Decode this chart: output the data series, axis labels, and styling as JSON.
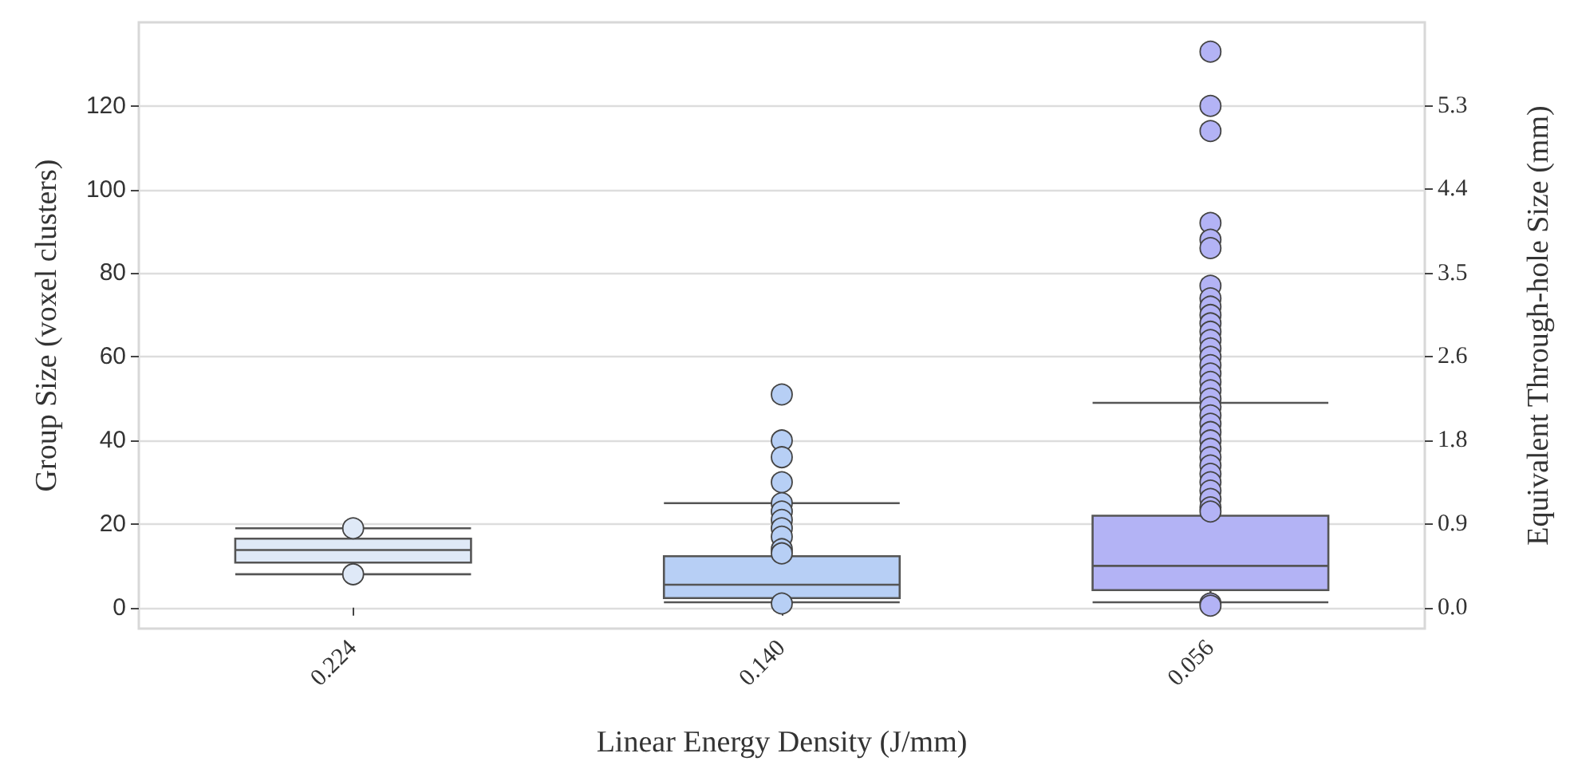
{
  "chart_data": {
    "type": "box",
    "xlabel": "Linear Energy Density (J/mm)",
    "ylabel": "Group Size (voxel clusters)",
    "y2label": "Equivalent Through-hole Size (mm)",
    "categories": [
      "0.224",
      "0.140",
      "0.056"
    ],
    "colors": [
      "#dfe9f7",
      "#b7cff5",
      "#b3b3f5"
    ],
    "boxes": [
      {
        "low": 8,
        "q1": 10.8,
        "median": 13.8,
        "q3": 16.5,
        "high": 19,
        "outliers": [
          19,
          8
        ]
      },
      {
        "low": 1.3,
        "q1": 2.3,
        "median": 5.5,
        "q3": 12.3,
        "high": 25,
        "outliers": [
          51,
          40,
          36,
          30,
          25,
          23,
          21,
          19,
          17,
          14,
          13,
          1
        ]
      },
      {
        "low": 1.3,
        "q1": 4.2,
        "median": 10,
        "q3": 22,
        "high": 49,
        "outliers": [
          133,
          120,
          114,
          92,
          88,
          86,
          77,
          74,
          72,
          70,
          68,
          66,
          64,
          62,
          60,
          58,
          56,
          54,
          52,
          50,
          48,
          46,
          44,
          42,
          40,
          38,
          36,
          34,
          32,
          30,
          28,
          26,
          24,
          23,
          1,
          0.5
        ]
      }
    ],
    "ylim": [
      -5,
      140
    ],
    "yticks": [
      0,
      20,
      40,
      60,
      80,
      100,
      120
    ],
    "y2lim": [
      -0.22,
      6.18
    ],
    "y2ticks": [
      {
        "value": 0,
        "label": "0.0"
      },
      {
        "value": 0.88,
        "label": "0.9"
      },
      {
        "value": 1.77,
        "label": "1.8"
      },
      {
        "value": 2.65,
        "label": "2.6"
      },
      {
        "value": 3.53,
        "label": "3.5"
      },
      {
        "value": 4.42,
        "label": "4.4"
      },
      {
        "value": 5.3,
        "label": "5.3"
      }
    ],
    "grid": "y",
    "marker": "circle"
  }
}
